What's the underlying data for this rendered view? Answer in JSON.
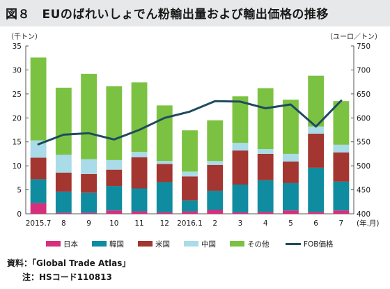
{
  "figure": {
    "title": "図８　EUのばれいしょでん粉輸出量および輸出価格の推移",
    "unit_left": "（千トン）",
    "unit_right": "（ユーロ／トン）",
    "x_unit": "(年.月)",
    "source": "資料：「Global Trade Atlas」",
    "note_label": "注：",
    "note_text": "HSコード110813"
  },
  "colors": {
    "japan": "#d62f7b",
    "korea": "#0f8ca0",
    "usa": "#a33630",
    "china": "#a9dbe8",
    "other": "#7cc242",
    "fob": "#1e4b5e",
    "title_band": "#e7e8e9",
    "axis": "#555555"
  },
  "chart_data": {
    "type": "bar",
    "stacked": true,
    "categories": [
      "2015.7",
      "8",
      "9",
      "10",
      "11",
      "12",
      "2016.1",
      "2",
      "3",
      "4",
      "5",
      "6",
      "7"
    ],
    "series": [
      {
        "name": "日本",
        "key": "japan",
        "values": [
          2.2,
          0.2,
          0.2,
          0.7,
          0.5,
          0.3,
          0.5,
          0.8,
          0.3,
          0.4,
          0.7,
          0.4,
          0.7
        ]
      },
      {
        "name": "韓国",
        "key": "korea",
        "values": [
          5.0,
          4.4,
          4.2,
          5.1,
          4.8,
          6.3,
          2.3,
          4.0,
          5.8,
          6.6,
          5.7,
          9.2,
          6.0
        ]
      },
      {
        "name": "米国",
        "key": "usa",
        "values": [
          4.5,
          4.0,
          3.9,
          3.4,
          6.5,
          3.8,
          5.0,
          5.4,
          7.1,
          5.5,
          4.5,
          7.1,
          6.1
        ]
      },
      {
        "name": "中国",
        "key": "china",
        "values": [
          3.6,
          3.7,
          3.1,
          2.0,
          1.1,
          0.6,
          1.0,
          0.8,
          1.6,
          1.0,
          1.6,
          1.5,
          1.6
        ]
      },
      {
        "name": "その他",
        "key": "other",
        "values": [
          17.3,
          14.0,
          17.8,
          15.4,
          14.5,
          11.6,
          8.6,
          8.5,
          9.7,
          12.7,
          11.3,
          10.6,
          9.1
        ]
      }
    ],
    "line": {
      "name": "FOB価格",
      "key": "fob",
      "axis": "right",
      "values": [
        545,
        565,
        568,
        555,
        575,
        600,
        613,
        635,
        634,
        620,
        628,
        582,
        636
      ]
    },
    "ylim_left": [
      0,
      35
    ],
    "yticks_left": [
      0,
      5,
      10,
      15,
      20,
      25,
      30,
      35
    ],
    "ylim_right": [
      400,
      750
    ],
    "yticks_right": [
      400,
      450,
      500,
      550,
      600,
      650,
      700,
      750
    ],
    "legend_position": "bottom",
    "grid": false
  }
}
